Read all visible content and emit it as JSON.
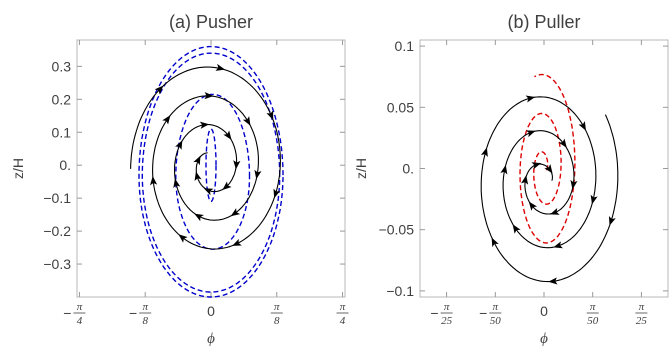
{
  "chart_data": [
    {
      "type": "line",
      "title": "(a) Pusher",
      "xlabel": "ϕ",
      "ylabel": "z/H",
      "xlim": [
        -0.8,
        0.8
      ],
      "ylim": [
        -0.4,
        0.38
      ],
      "x_ticks": [
        {
          "value": -0.7854,
          "sign": "−",
          "num": "π",
          "den": "4"
        },
        {
          "value": -0.3927,
          "sign": "−",
          "num": "π",
          "den": "8"
        },
        {
          "value": 0,
          "sign": "",
          "num": "0",
          "den": ""
        },
        {
          "value": 0.3927,
          "sign": "",
          "num": "π",
          "den": "8"
        },
        {
          "value": 0.7854,
          "sign": "",
          "num": "π",
          "den": "4"
        }
      ],
      "y_ticks": [
        {
          "value": 0.3,
          "label": "0.3"
        },
        {
          "value": 0.2,
          "label": "0.2"
        },
        {
          "value": 0.1,
          "label": "0.1"
        },
        {
          "value": 0,
          "label": "0."
        },
        {
          "value": -0.1,
          "label": "−0.1"
        },
        {
          "value": -0.2,
          "label": "−0.2"
        },
        {
          "value": -0.3,
          "label": "−0.3"
        }
      ],
      "series": [
        {
          "color": "#0000cc",
          "style": "dashed",
          "shape": "ring",
          "center": [
            0.0,
            -0.03
          ],
          "rx": 0.43,
          "ry_top": 0.39,
          "ry_bottom": 0.37
        },
        {
          "color": "#0000cc",
          "style": "dashed",
          "shape": "ring",
          "center": [
            0.0,
            -0.03
          ],
          "rx": 0.41,
          "ry_top": 0.37,
          "ry_bottom": 0.355
        },
        {
          "color": "#0000cc",
          "style": "dashed",
          "shape": "ring",
          "center": [
            0.01,
            -0.035
          ],
          "rx": 0.22,
          "ry_top": 0.25,
          "ry_bottom": 0.22
        },
        {
          "color": "#0000cc",
          "style": "dashed",
          "shape": "ring",
          "center": [
            0.0,
            0.0
          ],
          "rx": 0.03,
          "ry_top": 0.11,
          "ry_bottom": 0.11
        },
        {
          "color": "#000000",
          "style": "solid",
          "shape": "spiral",
          "center": [
            0.0,
            0.0
          ],
          "rx_start": 0.06,
          "rx_end": 0.48,
          "ry_start": 0.04,
          "ry_end": 0.32,
          "start_angle_deg": 110,
          "turns": 3.2,
          "arrows": 22
        }
      ]
    },
    {
      "type": "line",
      "title": "(b) Puller",
      "xlabel": "ϕ",
      "ylabel": "z/H",
      "xlim": [
        -0.16,
        0.16
      ],
      "ylim": [
        -0.105,
        0.105
      ],
      "x_ticks": [
        {
          "value": -0.12566,
          "sign": "−",
          "num": "π",
          "den": "25"
        },
        {
          "value": -0.06283,
          "sign": "−",
          "num": "π",
          "den": "50"
        },
        {
          "value": 0,
          "sign": "",
          "num": "0",
          "den": ""
        },
        {
          "value": 0.06283,
          "sign": "",
          "num": "π",
          "den": "50"
        },
        {
          "value": 0.12566,
          "sign": "",
          "num": "π",
          "den": "25"
        }
      ],
      "y_ticks": [
        {
          "value": 0.1,
          "label": "0.1"
        },
        {
          "value": 0.05,
          "label": "0.05"
        },
        {
          "value": 0,
          "label": "0."
        },
        {
          "value": -0.05,
          "label": "−0.05"
        },
        {
          "value": -0.1,
          "label": "−0.1"
        }
      ],
      "series": [
        {
          "color": "#dd0000",
          "style": "dashed",
          "shape": "spiral",
          "center": [
            0.0,
            0.0
          ],
          "rx_start": 0.003,
          "rx_end": 0.045,
          "ry_start": 0.003,
          "ry_end": 0.078,
          "start_angle_deg": -20,
          "turns": 2.35,
          "arrows": 0
        },
        {
          "color": "#000000",
          "style": "solid",
          "shape": "spiral",
          "center": [
            0.0,
            -0.01
          ],
          "rx_start": 0.01,
          "rx_end": 0.098,
          "ry_start": 0.006,
          "ry_end": 0.092,
          "start_angle_deg": 0,
          "turns": 3.1,
          "arrows": 18
        }
      ]
    }
  ]
}
